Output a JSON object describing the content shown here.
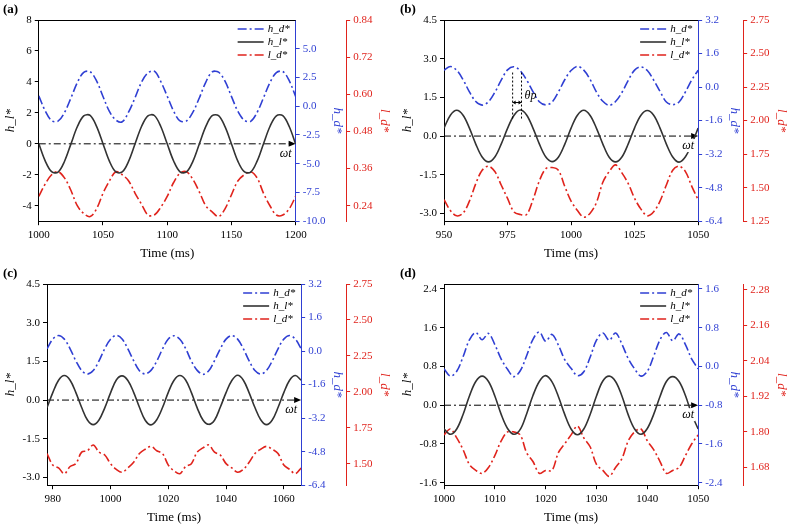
{
  "chart_data": [
    {
      "type": "line",
      "panel": "(a)",
      "x_label": "Time (ms)",
      "y_label": "h_l*",
      "y2_label": "h_d*",
      "y3_label": "l_d*",
      "legend": "upper right",
      "grid": false,
      "reference_line": {
        "y": 0,
        "text": "ωt"
      },
      "xlim": [
        1000,
        1200
      ],
      "xticks": [
        1000,
        1050,
        1100,
        1150,
        1200
      ],
      "ylim": [
        -5,
        8
      ],
      "yticks": [
        -4,
        -2,
        0,
        2,
        4,
        6,
        8
      ],
      "y2lim": [
        -10,
        7.5
      ],
      "y2ticks": [
        {
          "value": -10,
          "label": "-10.0"
        },
        -7.5,
        {
          "value": -5,
          "label": "-5.0"
        },
        -2.5,
        {
          "value": 0,
          "label": "0.0"
        },
        2.5,
        {
          "value": 5,
          "label": "5.0"
        }
      ],
      "y3lim": [
        0.19,
        0.84
      ],
      "y3ticks": [
        0.24,
        0.36,
        0.48,
        {
          "value": 0.6,
          "label": "0.60"
        },
        0.72,
        0.84
      ],
      "x": [
        1000,
        1005,
        1010,
        1015,
        1020,
        1025,
        1030,
        1035,
        1040,
        1045,
        1050,
        1055,
        1060,
        1065,
        1070,
        1075,
        1080,
        1085,
        1090,
        1095,
        1100,
        1105,
        1110,
        1115,
        1120,
        1125,
        1130,
        1135,
        1140,
        1145,
        1150,
        1155,
        1160,
        1165,
        1170,
        1175,
        1180,
        1185,
        1190,
        1195,
        1200
      ],
      "series": [
        {
          "name": "h_d*",
          "color": "#2f3fd3",
          "line_style": "dashdot",
          "axis": "y2",
          "values": [
            0.9,
            -0.4,
            -1.25,
            -1.3,
            -0.55,
            0.7,
            2.05,
            2.95,
            3.0,
            2.2,
            0.85,
            -0.45,
            -1.2,
            -1.35,
            -0.5,
            0.75,
            2.1,
            2.9,
            3.05,
            2.15,
            0.88,
            -0.42,
            -1.28,
            -1.28,
            -0.52,
            0.72,
            2.08,
            2.98,
            2.96,
            2.18,
            0.86,
            -0.44,
            -1.22,
            -1.32,
            -0.54,
            0.74,
            2.06,
            2.92,
            3.02,
            2.22,
            0.84
          ]
        },
        {
          "name": "h_l*",
          "color": "#333333",
          "line_style": "solid",
          "axis": "y",
          "values": [
            0.02,
            -1.1,
            -1.8,
            -1.83,
            -1.14,
            -0.02,
            1.1,
            1.8,
            1.84,
            1.13,
            0.01,
            -1.12,
            -1.82,
            -1.82,
            -1.12,
            0.0,
            1.12,
            1.81,
            1.83,
            1.12,
            0.0,
            -1.11,
            -1.81,
            -1.82,
            -1.13,
            -0.01,
            1.11,
            1.82,
            1.82,
            1.11,
            0.01,
            -1.12,
            -1.8,
            -1.83,
            -1.12,
            0.01,
            1.12,
            1.81,
            1.82,
            1.12,
            -0.01
          ]
        },
        {
          "name": "l_d*",
          "color": "#e0231c",
          "line_style": "dashdot",
          "axis": "y3",
          "values": [
            0.27,
            0.31,
            0.34,
            0.35,
            0.33,
            0.29,
            0.24,
            0.215,
            0.205,
            0.23,
            0.28,
            0.32,
            0.35,
            0.34,
            0.32,
            0.28,
            0.245,
            0.21,
            0.21,
            0.235,
            0.27,
            0.315,
            0.345,
            0.35,
            0.325,
            0.285,
            0.24,
            0.22,
            0.205,
            0.23,
            0.275,
            0.32,
            0.34,
            0.35,
            0.33,
            0.28,
            0.24,
            0.21,
            0.21,
            0.23,
            0.27
          ]
        }
      ]
    },
    {
      "type": "line",
      "panel": "(b)",
      "x_label": "Time (ms)",
      "y_label": "h_l*",
      "y2_label": "h_d*",
      "y3_label": "l_d*",
      "legend": "upper right",
      "grid": false,
      "reference_line": {
        "y": 0,
        "text": "ωt"
      },
      "annotations": [
        {
          "text": "θp",
          "x": [
            977,
            980.5
          ],
          "y": 1.3
        }
      ],
      "xlim": [
        950,
        1050
      ],
      "xticks": [
        950,
        975,
        1000,
        1025,
        1050
      ],
      "ylim": [
        -3.3,
        4.5
      ],
      "yticks": [
        {
          "value": -3,
          "label": "-3.0"
        },
        -1.5,
        {
          "value": 0,
          "label": "0.0"
        },
        1.5,
        {
          "value": 3,
          "label": "3.0"
        },
        4.5
      ],
      "y2lim": [
        -6.4,
        3.2
      ],
      "y2ticks": [
        -6.4,
        -4.8,
        -3.2,
        -1.6,
        {
          "value": 0,
          "label": "0.0"
        },
        1.6,
        3.2
      ],
      "y3lim": [
        1.25,
        2.75
      ],
      "y3ticks": [
        1.25,
        {
          "value": 1.5,
          "label": "1.50"
        },
        1.75,
        {
          "value": 2,
          "label": "2.00"
        },
        2.25,
        {
          "value": 2.5,
          "label": "2.50"
        },
        2.75
      ],
      "x": [
        950,
        952.5,
        955,
        957.5,
        960,
        962.5,
        965,
        967.5,
        970,
        972.5,
        975,
        977.5,
        980,
        982.5,
        985,
        987.5,
        990,
        992.5,
        995,
        997.5,
        1000,
        1002.5,
        1005,
        1007.5,
        1010,
        1012.5,
        1015,
        1017.5,
        1020,
        1022.5,
        1025,
        1027.5,
        1030,
        1032.5,
        1035,
        1037.5,
        1040,
        1042.5,
        1045,
        1047.5,
        1050
      ],
      "series": [
        {
          "name": "h_d*",
          "color": "#2f3fd3",
          "line_style": "dashdot",
          "axis": "y2",
          "values": [
            0.8,
            0.98,
            0.8,
            0.35,
            -0.23,
            -0.69,
            -0.86,
            -0.7,
            -0.25,
            0.33,
            0.82,
            0.97,
            0.78,
            0.34,
            -0.22,
            -0.7,
            -0.85,
            -0.72,
            -0.24,
            0.35,
            0.79,
            0.99,
            0.81,
            0.36,
            -0.24,
            -0.68,
            -0.87,
            -0.69,
            -0.26,
            0.32,
            0.81,
            0.96,
            0.79,
            0.33,
            -0.21,
            -0.71,
            -0.84,
            -0.71,
            -0.23,
            0.34,
            0.8
          ]
        },
        {
          "name": "h_l*",
          "color": "#333333",
          "line_style": "solid",
          "axis": "y",
          "values": [
            0.31,
            0.81,
            1.0,
            0.81,
            0.31,
            -0.31,
            -0.81,
            -1.0,
            -0.81,
            -0.31,
            0.3,
            0.8,
            1.01,
            0.82,
            0.31,
            -0.3,
            -0.8,
            -0.99,
            -0.82,
            -0.32,
            0.31,
            0.81,
            1.0,
            0.8,
            0.3,
            -0.31,
            -0.82,
            -1.0,
            -0.81,
            -0.3,
            0.32,
            0.81,
            0.99,
            0.81,
            0.31,
            -0.31,
            -0.81,
            -1.01,
            -0.8,
            -0.31,
            0.31
          ]
        },
        {
          "name": "l_d*",
          "color": "#e0231c",
          "line_style": "dashdot",
          "axis": "y3",
          "values": [
            1.41,
            1.33,
            1.29,
            1.31,
            1.4,
            1.53,
            1.63,
            1.66,
            1.62,
            1.52,
            1.42,
            1.32,
            1.3,
            1.3,
            1.41,
            1.55,
            1.64,
            1.65,
            1.63,
            1.51,
            1.4,
            1.33,
            1.28,
            1.31,
            1.39,
            1.54,
            1.62,
            1.67,
            1.61,
            1.53,
            1.42,
            1.34,
            1.29,
            1.32,
            1.4,
            1.52,
            1.63,
            1.66,
            1.62,
            1.51,
            1.41
          ]
        }
      ]
    },
    {
      "type": "line",
      "panel": "(c)",
      "x_label": "Time (ms)",
      "y_label": "h_l*",
      "y2_label": "h_d*",
      "y3_label": "l_d*",
      "legend": "upper right",
      "grid": false,
      "reference_line": {
        "y": 0,
        "text": "ωt"
      },
      "xlim": [
        978,
        1066
      ],
      "xticks": [
        980,
        1000,
        1020,
        1040,
        1060
      ],
      "ylim": [
        -3.3,
        4.5
      ],
      "yticks": [
        {
          "value": -3,
          "label": "-3.0"
        },
        -1.5,
        {
          "value": 0,
          "label": "0.0"
        },
        1.5,
        {
          "value": 3,
          "label": "3.0"
        },
        4.5
      ],
      "y2lim": [
        -6.4,
        3.2
      ],
      "y2ticks": [
        -6.4,
        -4.8,
        -3.2,
        -1.6,
        {
          "value": 0,
          "label": "0.0"
        },
        1.6,
        3.2
      ],
      "y3lim": [
        1.35,
        2.75
      ],
      "y3ticks": [
        {
          "value": 1.5,
          "label": "1.50"
        },
        1.75,
        {
          "value": 2,
          "label": "2.00"
        },
        2.25,
        {
          "value": 2.5,
          "label": "2.50"
        },
        2.75
      ],
      "x": [
        978,
        980,
        982,
        984,
        986,
        988,
        990,
        992,
        994,
        996,
        998,
        1000,
        1002,
        1004,
        1006,
        1008,
        1010,
        1012,
        1014,
        1016,
        1018,
        1020,
        1022,
        1024,
        1026,
        1028,
        1030,
        1032,
        1034,
        1036,
        1038,
        1040,
        1042,
        1044,
        1046,
        1048,
        1050,
        1052,
        1054,
        1056,
        1058,
        1060,
        1062,
        1064,
        1066
      ],
      "series": [
        {
          "name": "h_d*",
          "color": "#2f3fd3",
          "line_style": "dashdot",
          "axis": "y2",
          "values": [
            0.11,
            0.57,
            0.74,
            0.57,
            0.11,
            -0.47,
            -0.93,
            -1.1,
            -0.93,
            -0.47,
            0.12,
            0.56,
            0.75,
            0.58,
            0.1,
            -0.46,
            -0.94,
            -1.09,
            -0.92,
            -0.48,
            0.1,
            0.58,
            0.73,
            0.56,
            0.12,
            -0.48,
            -0.92,
            -1.11,
            -0.94,
            -0.46,
            0.11,
            0.57,
            0.74,
            0.57,
            0.11,
            -0.47,
            -0.93,
            -1.1,
            -0.93,
            -0.47,
            0.11,
            0.57,
            0.74,
            0.57,
            0.11
          ]
        },
        {
          "name": "h_l*",
          "color": "#333333",
          "line_style": "solid",
          "axis": "y",
          "values": [
            -0.29,
            0.29,
            0.77,
            0.95,
            0.77,
            0.29,
            -0.29,
            -0.77,
            -0.95,
            -0.77,
            -0.3,
            0.28,
            0.78,
            0.94,
            0.76,
            0.3,
            -0.28,
            -0.78,
            -0.96,
            -0.76,
            -0.29,
            0.3,
            0.77,
            0.95,
            0.78,
            0.29,
            -0.3,
            -0.77,
            -0.94,
            -0.78,
            -0.28,
            0.29,
            0.76,
            0.96,
            0.77,
            0.28,
            -0.29,
            -0.76,
            -0.95,
            -0.77,
            -0.29,
            0.29,
            0.77,
            0.95,
            0.77
          ]
        },
        {
          "name": "l_d*",
          "color": "#e0231c",
          "line_style": "dashdot",
          "axis": "y3",
          "values": [
            1.57,
            1.49,
            1.47,
            1.43,
            1.48,
            1.5,
            1.58,
            1.59,
            1.63,
            1.58,
            1.56,
            1.5,
            1.46,
            1.44,
            1.47,
            1.51,
            1.57,
            1.6,
            1.62,
            1.59,
            1.57,
            1.49,
            1.45,
            1.43,
            1.48,
            1.5,
            1.58,
            1.61,
            1.63,
            1.58,
            1.56,
            1.5,
            1.47,
            1.44,
            1.46,
            1.51,
            1.57,
            1.6,
            1.62,
            1.6,
            1.57,
            1.49,
            1.46,
            1.43,
            1.47
          ]
        }
      ]
    },
    {
      "type": "line",
      "panel": "(d)",
      "x_label": "Time (ms)",
      "y_label": "h_l*",
      "y2_label": "h_d*",
      "y3_label": "l_d*",
      "legend": "upper right",
      "grid": false,
      "reference_line": {
        "y": 0,
        "text": "ωt"
      },
      "xlim": [
        1000,
        1050
      ],
      "xticks": [
        1000,
        1010,
        1020,
        1030,
        1040,
        1050
      ],
      "ylim": [
        -1.65,
        2.5
      ],
      "yticks": [
        -1.6,
        -0.8,
        {
          "value": 0,
          "label": "0.0"
        },
        0.8,
        1.6,
        2.4
      ],
      "y2lim": [
        -2.45,
        1.7
      ],
      "y2ticks": [
        -2.4,
        -1.6,
        -0.8,
        {
          "value": 0,
          "label": "0.0"
        },
        0.8,
        1.6
      ],
      "y3lim": [
        1.62,
        2.3
      ],
      "y3ticks": [
        1.68,
        {
          "value": 1.8,
          "label": "1.80"
        },
        1.92,
        2.04,
        2.16,
        2.28
      ],
      "x": [
        1000,
        1001.25,
        1002.5,
        1003.75,
        1005,
        1006.25,
        1007.5,
        1008.75,
        1010,
        1011.25,
        1012.5,
        1013.75,
        1015,
        1016.25,
        1017.5,
        1018.75,
        1020,
        1021.25,
        1022.5,
        1023.75,
        1025,
        1026.25,
        1027.5,
        1028.75,
        1030,
        1031.25,
        1032.5,
        1033.75,
        1035,
        1036.25,
        1037.5,
        1038.75,
        1040,
        1041.25,
        1042.5,
        1043.75,
        1045,
        1046.25,
        1047.5,
        1048.75,
        1050
      ],
      "series": [
        {
          "name": "h_d*",
          "color": "#2f3fd3",
          "line_style": "dashdot",
          "axis": "y2",
          "values": [
            -0.05,
            -0.2,
            -0.1,
            0.2,
            0.55,
            0.7,
            0.55,
            0.68,
            0.45,
            0.15,
            -0.06,
            -0.21,
            -0.09,
            0.22,
            0.56,
            0.71,
            0.52,
            0.66,
            0.44,
            0.14,
            -0.04,
            -0.19,
            -0.11,
            0.19,
            0.54,
            0.69,
            0.54,
            0.69,
            0.46,
            0.16,
            -0.05,
            -0.2,
            -0.1,
            0.21,
            0.55,
            0.7,
            0.53,
            0.67,
            0.45,
            0.15,
            -0.05
          ]
        },
        {
          "name": "h_l*",
          "color": "#333333",
          "line_style": "solid",
          "axis": "y",
          "values": [
            -0.49,
            -0.6,
            -0.49,
            -0.19,
            0.19,
            0.49,
            0.6,
            0.49,
            0.19,
            -0.19,
            -0.48,
            -0.6,
            -0.5,
            -0.18,
            0.2,
            0.49,
            0.61,
            0.48,
            0.18,
            -0.19,
            -0.49,
            -0.61,
            -0.49,
            -0.19,
            0.19,
            0.5,
            0.6,
            0.49,
            0.19,
            -0.2,
            -0.49,
            -0.6,
            -0.48,
            -0.19,
            0.18,
            0.49,
            0.59,
            0.49,
            0.2,
            -0.19,
            -0.49
          ]
        },
        {
          "name": "l_d*",
          "color": "#e0231c",
          "line_style": "dashdot",
          "axis": "y3",
          "values": [
            1.79,
            1.81,
            1.78,
            1.74,
            1.69,
            1.67,
            1.66,
            1.68,
            1.72,
            1.77,
            1.8,
            1.8,
            1.79,
            1.73,
            1.7,
            1.66,
            1.67,
            1.67,
            1.73,
            1.76,
            1.79,
            1.82,
            1.78,
            1.75,
            1.69,
            1.67,
            1.65,
            1.68,
            1.71,
            1.77,
            1.8,
            1.81,
            1.77,
            1.74,
            1.7,
            1.66,
            1.67,
            1.68,
            1.72,
            1.76,
            1.79
          ]
        }
      ]
    }
  ]
}
